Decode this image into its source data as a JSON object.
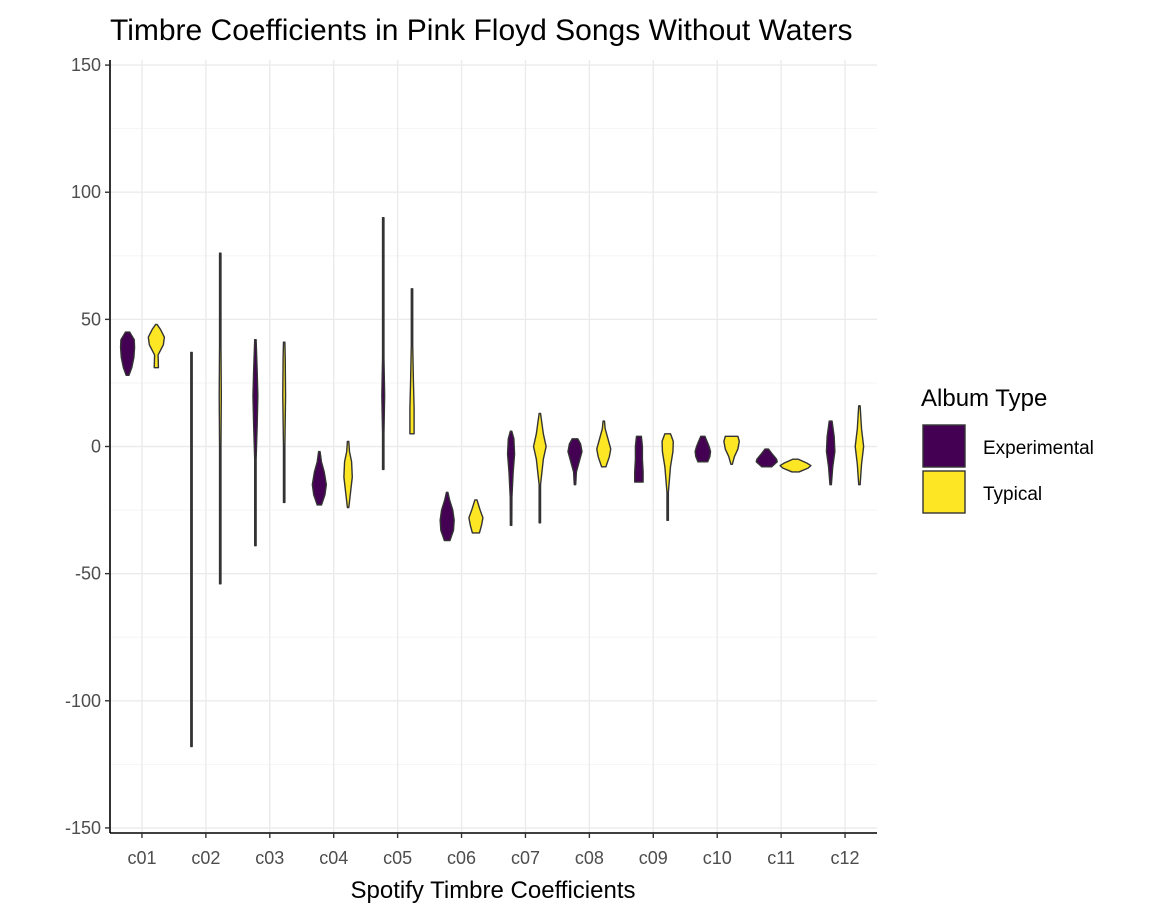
{
  "chart_data": {
    "type": "violin",
    "title": "Timbre Coefficients in Pink Floyd Songs Without Waters",
    "xlabel": "Spotify Timbre Coefficients",
    "ylabel": "",
    "ylim": [
      -152,
      152
    ],
    "yticks": [
      -150,
      -100,
      -50,
      0,
      50,
      100,
      150
    ],
    "categories": [
      "c01",
      "c02",
      "c03",
      "c04",
      "c05",
      "c06",
      "c07",
      "c08",
      "c09",
      "c10",
      "c11",
      "c12"
    ],
    "grid": true,
    "legend": {
      "title": "Album Type",
      "position": "right"
    },
    "series": [
      {
        "name": "Experimental",
        "color": "#440154",
        "violins": [
          {
            "category": "c01",
            "min": 28,
            "max": 45,
            "profile": [
              [
                28,
                0.2
              ],
              [
                31,
                0.6
              ],
              [
                35,
                0.9
              ],
              [
                39,
                1.0
              ],
              [
                42,
                0.95
              ],
              [
                45,
                0.3
              ]
            ]
          },
          {
            "category": "c02",
            "min": -118,
            "max": 37,
            "profile": [
              [
                -118,
                0.05
              ],
              [
                0,
                0.08
              ],
              [
                37,
                0.05
              ]
            ]
          },
          {
            "category": "c03",
            "min": -39,
            "max": 42,
            "profile": [
              [
                -39,
                0.05
              ],
              [
                -5,
                0.1
              ],
              [
                8,
                0.25
              ],
              [
                20,
                0.35
              ],
              [
                30,
                0.25
              ],
              [
                42,
                0.05
              ]
            ]
          },
          {
            "category": "c04",
            "min": -23,
            "max": -2,
            "profile": [
              [
                -23,
                0.3
              ],
              [
                -19,
                0.8
              ],
              [
                -15,
                1.0
              ],
              [
                -10,
                0.7
              ],
              [
                -6,
                0.3
              ],
              [
                -2,
                0.08
              ]
            ]
          },
          {
            "category": "c05",
            "min": -9,
            "max": 90,
            "profile": [
              [
                -9,
                0.05
              ],
              [
                5,
                0.1
              ],
              [
                20,
                0.2
              ],
              [
                35,
                0.1
              ],
              [
                60,
                0.05
              ],
              [
                90,
                0.03
              ]
            ]
          },
          {
            "category": "c06",
            "min": -37,
            "max": -18,
            "profile": [
              [
                -37,
                0.4
              ],
              [
                -33,
                0.9
              ],
              [
                -29,
                1.0
              ],
              [
                -25,
                0.8
              ],
              [
                -21,
                0.35
              ],
              [
                -18,
                0.1
              ]
            ]
          },
          {
            "category": "c07",
            "min": -31,
            "max": 6,
            "profile": [
              [
                -31,
                0.05
              ],
              [
                -20,
                0.12
              ],
              [
                -10,
                0.3
              ],
              [
                -3,
                0.5
              ],
              [
                3,
                0.4
              ],
              [
                6,
                0.1
              ]
            ]
          },
          {
            "category": "c08",
            "min": -15,
            "max": 3,
            "profile": [
              [
                -15,
                0.05
              ],
              [
                -10,
                0.2
              ],
              [
                -6,
                0.6
              ],
              [
                -2,
                1.0
              ],
              [
                1,
                0.8
              ],
              [
                3,
                0.4
              ]
            ]
          },
          {
            "category": "c09",
            "min": -14,
            "max": 4,
            "profile": [
              [
                -14,
                0.6
              ],
              [
                -10,
                0.6
              ],
              [
                -5,
                0.5
              ],
              [
                0,
                0.5
              ],
              [
                4,
                0.35
              ]
            ]
          },
          {
            "category": "c10",
            "min": -6,
            "max": 4,
            "profile": [
              [
                -6,
                0.7
              ],
              [
                -4,
                1.0
              ],
              [
                -2,
                1.1
              ],
              [
                0,
                0.9
              ],
              [
                2,
                0.6
              ],
              [
                4,
                0.3
              ]
            ]
          },
          {
            "category": "c11",
            "min": -8,
            "max": -1,
            "profile": [
              [
                -8,
                0.7
              ],
              [
                -6,
                1.5
              ],
              [
                -5,
                1.4
              ],
              [
                -3,
                0.8
              ],
              [
                -1,
                0.25
              ]
            ]
          },
          {
            "category": "c12",
            "min": -15,
            "max": 10,
            "profile": [
              [
                -15,
                0.05
              ],
              [
                -8,
                0.3
              ],
              [
                -2,
                0.6
              ],
              [
                4,
                0.5
              ],
              [
                10,
                0.2
              ]
            ]
          }
        ]
      },
      {
        "name": "Typical",
        "color": "#fde725",
        "violins": [
          {
            "category": "c01",
            "min": 31,
            "max": 48,
            "profile": [
              [
                31,
                0.3
              ],
              [
                36,
                0.25
              ],
              [
                40,
                1.0
              ],
              [
                43,
                1.15
              ],
              [
                46,
                0.6
              ],
              [
                48,
                0.1
              ]
            ]
          },
          {
            "category": "c02",
            "min": -54,
            "max": 76,
            "profile": [
              [
                -54,
                0.05
              ],
              [
                0,
                0.1
              ],
              [
                20,
                0.15
              ],
              [
                40,
                0.1
              ],
              [
                76,
                0.05
              ]
            ]
          },
          {
            "category": "c03",
            "min": -22,
            "max": 41,
            "profile": [
              [
                -22,
                0.05
              ],
              [
                0,
                0.1
              ],
              [
                20,
                0.2
              ],
              [
                35,
                0.15
              ],
              [
                41,
                0.05
              ]
            ]
          },
          {
            "category": "c04",
            "min": -24,
            "max": 2,
            "profile": [
              [
                -24,
                0.1
              ],
              [
                -18,
                0.35
              ],
              [
                -12,
                0.6
              ],
              [
                -6,
                0.5
              ],
              [
                -2,
                0.2
              ],
              [
                2,
                0.08
              ]
            ]
          },
          {
            "category": "c05",
            "min": 5,
            "max": 62,
            "profile": [
              [
                5,
                0.3
              ],
              [
                15,
                0.3
              ],
              [
                26,
                0.2
              ],
              [
                40,
                0.05
              ],
              [
                62,
                0.05
              ]
            ]
          },
          {
            "category": "c06",
            "min": -34,
            "max": -21,
            "profile": [
              [
                -34,
                0.5
              ],
              [
                -31,
                0.8
              ],
              [
                -28,
                1.0
              ],
              [
                -25,
                0.6
              ],
              [
                -21,
                0.15
              ]
            ]
          },
          {
            "category": "c07",
            "min": -30,
            "max": 13,
            "profile": [
              [
                -30,
                0.05
              ],
              [
                -15,
                0.1
              ],
              [
                -5,
                0.5
              ],
              [
                0,
                0.9
              ],
              [
                5,
                0.5
              ],
              [
                13,
                0.05
              ]
            ]
          },
          {
            "category": "c08",
            "min": -8,
            "max": 10,
            "profile": [
              [
                -8,
                0.3
              ],
              [
                -4,
                0.8
              ],
              [
                -1,
                1.0
              ],
              [
                3,
                0.6
              ],
              [
                7,
                0.2
              ],
              [
                10,
                0.05
              ]
            ]
          },
          {
            "category": "c09",
            "min": -29,
            "max": 5,
            "profile": [
              [
                -29,
                0.05
              ],
              [
                -18,
                0.1
              ],
              [
                -8,
                0.4
              ],
              [
                -2,
                0.75
              ],
              [
                2,
                0.8
              ],
              [
                5,
                0.4
              ]
            ]
          },
          {
            "category": "c10",
            "min": -7,
            "max": 4,
            "profile": [
              [
                -7,
                0.1
              ],
              [
                -4,
                0.4
              ],
              [
                -1,
                0.9
              ],
              [
                2,
                1.1
              ],
              [
                4,
                0.9
              ]
            ]
          },
          {
            "category": "c11",
            "min": -10,
            "max": -5,
            "profile": [
              [
                -10,
                0.5
              ],
              [
                -8.5,
                1.8
              ],
              [
                -7.5,
                2.2
              ],
              [
                -6.5,
                1.6
              ],
              [
                -5,
                0.4
              ]
            ]
          },
          {
            "category": "c12",
            "min": -15,
            "max": 16,
            "profile": [
              [
                -15,
                0.05
              ],
              [
                -7,
                0.3
              ],
              [
                0,
                0.6
              ],
              [
                7,
                0.3
              ],
              [
                16,
                0.05
              ]
            ]
          }
        ]
      }
    ]
  }
}
